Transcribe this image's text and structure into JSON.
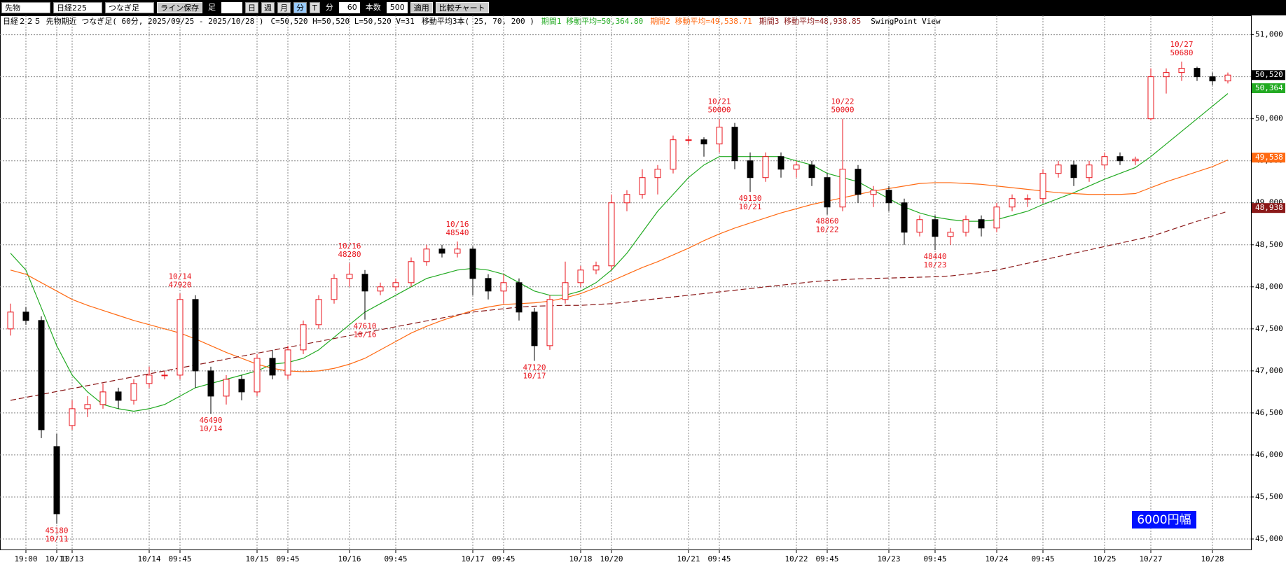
{
  "toolbar": {
    "market": "先物",
    "index": "日経225",
    "bar_type": "つなぎ足",
    "save_button": "ライン保存",
    "bar_label": "足",
    "periods": [
      "日",
      "週",
      "月",
      "分",
      "T"
    ],
    "unit_label": "分",
    "interval": 60,
    "count_label": "本数",
    "count": 500,
    "apply_button": "適用",
    "compare_button": "比較チャート"
  },
  "chart_data": {
    "type": "candlestick",
    "info": {
      "instrument": "日経２２５ 先物期近 つなぎ足( 60分, 2025/09/25 - 2025/10/28 )",
      "ohlc": "C=50,520 H=50,520 L=50,520 V=31",
      "ma_settings": "移動平均3本( 25, 70, 200 )",
      "view": "SwingPoint View"
    },
    "categories": [
      null,
      "19:00",
      null,
      "10/11",
      "10/13",
      null,
      null,
      null,
      null,
      "10/14",
      null,
      "09:45",
      null,
      null,
      null,
      null,
      "10/15",
      null,
      "09:45",
      null,
      null,
      null,
      "10/16",
      null,
      null,
      "09:45",
      null,
      null,
      null,
      null,
      "10/17",
      null,
      "09:45",
      null,
      null,
      null,
      null,
      "10/18",
      null,
      "10/20",
      null,
      null,
      null,
      null,
      "10/21",
      null,
      "09:45",
      null,
      null,
      null,
      null,
      "10/22",
      null,
      "09:45",
      null,
      null,
      null,
      "10/23",
      null,
      null,
      "09:45",
      null,
      null,
      null,
      "10/24",
      null,
      null,
      "09:45",
      null,
      null,
      null,
      "10/25",
      null,
      null,
      "10/27",
      null,
      null,
      null,
      "10/28",
      null
    ],
    "open": [
      47500,
      47700,
      47600,
      46100,
      46350,
      46550,
      46600,
      46750,
      46650,
      46850,
      46950,
      46950,
      47850,
      47000,
      46700,
      46900,
      46750,
      47150,
      46950,
      47250,
      47550,
      47850,
      48100,
      48150,
      47950,
      48000,
      48050,
      48300,
      48450,
      48400,
      48450,
      48100,
      47950,
      48050,
      47700,
      47300,
      47850,
      48050,
      48200,
      48250,
      49000,
      49100,
      49300,
      49400,
      49750,
      49750,
      49700,
      49900,
      49500,
      49300,
      49550,
      49400,
      49450,
      49300,
      48950,
      49400,
      49100,
      49150,
      49000,
      48650,
      48800,
      48600,
      48650,
      48800,
      48700,
      48950,
      49050,
      49050,
      49350,
      49450,
      49300,
      49450,
      49550,
      49500,
      50000,
      50500,
      50550,
      50600,
      50500,
      50450
    ],
    "high": [
      47800,
      47760,
      47650,
      46250,
      46650,
      46700,
      46850,
      46800,
      46900,
      47050,
      47000,
      47920,
      47900,
      47050,
      46950,
      46950,
      47200,
      47250,
      47300,
      47600,
      47900,
      48150,
      48280,
      48200,
      48050,
      48100,
      48350,
      48500,
      48500,
      48540,
      48480,
      48150,
      48150,
      48100,
      47750,
      47900,
      48300,
      48250,
      48300,
      49100,
      49150,
      49400,
      49450,
      49800,
      49800,
      49780,
      50000,
      49950,
      49600,
      49600,
      49600,
      49500,
      49500,
      49350,
      50000,
      49450,
      49200,
      49200,
      49050,
      48850,
      48850,
      48700,
      48850,
      48850,
      49000,
      49100,
      49100,
      49400,
      49500,
      49500,
      49500,
      49600,
      49600,
      49550,
      50600,
      50600,
      50680,
      50620,
      50550,
      50550
    ],
    "low": [
      47420,
      47550,
      46200,
      45180,
      46300,
      46450,
      46550,
      46550,
      46600,
      46800,
      46900,
      46900,
      46800,
      46490,
      46600,
      46650,
      46700,
      46900,
      46900,
      47200,
      47500,
      47800,
      48000,
      47610,
      47900,
      47950,
      48000,
      48250,
      48350,
      48350,
      47900,
      47850,
      47800,
      47600,
      47120,
      47250,
      47800,
      48000,
      48150,
      48200,
      48900,
      49050,
      49100,
      49350,
      49700,
      49550,
      49600,
      49400,
      49130,
      49250,
      49300,
      49300,
      49200,
      48860,
      48900,
      49000,
      48950,
      48900,
      48500,
      48600,
      48440,
      48500,
      48600,
      48600,
      48650,
      48900,
      48950,
      49000,
      49300,
      49200,
      49250,
      49400,
      49450,
      49450,
      49980,
      50300,
      50450,
      50450,
      50400,
      50420
    ],
    "close": [
      47700,
      47600,
      46300,
      45300,
      46550,
      46600,
      46750,
      46650,
      46850,
      46950,
      46950,
      47850,
      47000,
      46700,
      46900,
      46750,
      47150,
      46950,
      47250,
      47550,
      47850,
      48100,
      48150,
      47950,
      48000,
      48050,
      48300,
      48450,
      48400,
      48450,
      48100,
      47950,
      48050,
      47700,
      47300,
      47850,
      48050,
      48200,
      48250,
      49000,
      49100,
      49300,
      49400,
      49750,
      49750,
      49700,
      49900,
      49500,
      49300,
      49550,
      49400,
      49450,
      49300,
      48950,
      49400,
      49100,
      49150,
      49000,
      48650,
      48800,
      48600,
      48650,
      48800,
      48700,
      48950,
      49050,
      49050,
      49350,
      49450,
      49300,
      49450,
      49550,
      49500,
      49520,
      50500,
      50550,
      50600,
      50500,
      50450,
      50520
    ],
    "up_color": "#e8141c",
    "down_color": "#000000",
    "moving_averages": [
      {
        "name": "期間1 移動平均=50,364.80",
        "color": "#22aa22",
        "line_style": "solid",
        "values": [
          48400,
          48200,
          47750,
          47300,
          46950,
          46750,
          46600,
          46550,
          46520,
          46550,
          46600,
          46700,
          46800,
          46850,
          46900,
          46950,
          47000,
          47080,
          47100,
          47150,
          47250,
          47400,
          47550,
          47700,
          47800,
          47900,
          48000,
          48100,
          48150,
          48200,
          48220,
          48200,
          48150,
          48050,
          47950,
          47900,
          47900,
          47950,
          48050,
          48200,
          48400,
          48650,
          48900,
          49100,
          49300,
          49450,
          49550,
          49550,
          49550,
          49550,
          49550,
          49500,
          49450,
          49350,
          49300,
          49250,
          49150,
          49050,
          48950,
          48880,
          48830,
          48800,
          48780,
          48780,
          48800,
          48850,
          48900,
          48980,
          49050,
          49120,
          49200,
          49280,
          49350,
          49420,
          49550,
          49700,
          49850,
          50000,
          50150,
          50300
        ]
      },
      {
        "name": "期間2 移動平均=49,538.71",
        "color": "#ff6a13",
        "line_style": "solid",
        "values": [
          48200,
          48150,
          48050,
          47950,
          47850,
          47780,
          47720,
          47660,
          47600,
          47550,
          47500,
          47450,
          47380,
          47300,
          47220,
          47150,
          47080,
          47030,
          47000,
          46990,
          47000,
          47030,
          47080,
          47150,
          47250,
          47350,
          47450,
          47530,
          47600,
          47660,
          47720,
          47760,
          47790,
          47800,
          47810,
          47830,
          47870,
          47920,
          47990,
          48070,
          48150,
          48230,
          48300,
          48380,
          48460,
          48550,
          48630,
          48700,
          48760,
          48820,
          48880,
          48930,
          48980,
          49020,
          49060,
          49100,
          49140,
          49170,
          49200,
          49230,
          49240,
          49240,
          49230,
          49220,
          49200,
          49180,
          49160,
          49140,
          49120,
          49110,
          49100,
          49100,
          49100,
          49110,
          49180,
          49250,
          49310,
          49370,
          49430,
          49510
        ]
      },
      {
        "name": "期間3 移動平均=48,938.85",
        "color": "#8b1a1a",
        "line_style": "dashed",
        "values": [
          46650,
          46685,
          46720,
          46755,
          46790,
          46825,
          46860,
          46895,
          46930,
          46965,
          47000,
          47035,
          47070,
          47105,
          47140,
          47175,
          47210,
          47245,
          47280,
          47315,
          47350,
          47385,
          47420,
          47455,
          47490,
          47525,
          47560,
          47595,
          47630,
          47665,
          47700,
          47720,
          47740,
          47760,
          47770,
          47775,
          47780,
          47780,
          47790,
          47800,
          47820,
          47840,
          47860,
          47880,
          47900,
          47920,
          47940,
          47960,
          47980,
          48000,
          48020,
          48040,
          48060,
          48075,
          48085,
          48095,
          48100,
          48105,
          48110,
          48115,
          48120,
          48130,
          48150,
          48170,
          48200,
          48240,
          48280,
          48320,
          48360,
          48400,
          48440,
          48480,
          48520,
          48560,
          48600,
          48660,
          48720,
          48780,
          48840,
          48900
        ]
      }
    ],
    "annotations": [
      {
        "date": "10/11",
        "price": 45180
      },
      {
        "date": "10/14",
        "price": 47920
      },
      {
        "date": "10/14",
        "price": 46490
      },
      {
        "date": "10/16",
        "price": 48280
      },
      {
        "date": "10/16",
        "price": 47610
      },
      {
        "date": "10/16",
        "price": 48540
      },
      {
        "date": "10/17",
        "price": 47120
      },
      {
        "date": "10/21",
        "price": 50000
      },
      {
        "date": "10/21",
        "price": 49130
      },
      {
        "date": "10/22",
        "price": 48860
      },
      {
        "date": "10/22",
        "price": 50000
      },
      {
        "date": "10/23",
        "price": 48440
      },
      {
        "date": "10/27",
        "price": 50680
      }
    ],
    "price_tags": [
      {
        "value": 50520,
        "label": "50,520",
        "color": "#000000"
      },
      {
        "value": 50364,
        "label": "50,364",
        "color": "#22aa22"
      },
      {
        "value": 49538,
        "label": "49,538",
        "color": "#ff6a13"
      },
      {
        "value": 48938,
        "label": "48,938",
        "color": "#8b1a1a"
      }
    ],
    "range_label": "6000円幅",
    "ylim": [
      44900,
      51080
    ],
    "yticks": [
      {
        "value": 45000,
        "label": "45,000"
      },
      {
        "value": 45500,
        "label": "45,500"
      },
      {
        "value": 46000,
        "label": "46,000"
      },
      {
        "value": 46500,
        "label": "46,500"
      },
      {
        "value": 47000,
        "label": "47,000"
      },
      {
        "value": 47500,
        "label": "47,500"
      },
      {
        "value": 48000,
        "label": "48,000"
      },
      {
        "value": 48500,
        "label": "48,500"
      },
      {
        "value": 49000,
        "label": "49,000"
      },
      {
        "value": 49500,
        "label": "49,500"
      },
      {
        "value": 50000,
        "label": "50,000"
      },
      {
        "value": 50500,
        "label": "50,500"
      },
      {
        "value": 51000,
        "label": "51,000"
      }
    ],
    "grid": true
  }
}
